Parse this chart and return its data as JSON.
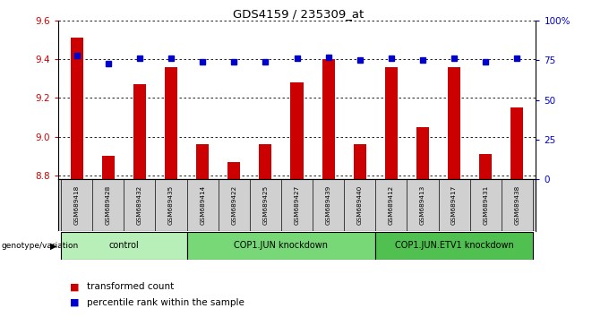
{
  "title": "GDS4159 / 235309_at",
  "samples": [
    "GSM689418",
    "GSM689428",
    "GSM689432",
    "GSM689435",
    "GSM689414",
    "GSM689422",
    "GSM689425",
    "GSM689427",
    "GSM689439",
    "GSM689440",
    "GSM689412",
    "GSM689413",
    "GSM689417",
    "GSM689431",
    "GSM689438"
  ],
  "transformed_count": [
    9.51,
    8.9,
    9.27,
    9.36,
    8.96,
    8.87,
    8.96,
    9.28,
    9.4,
    8.96,
    9.36,
    9.05,
    9.36,
    8.91,
    9.15
  ],
  "percentile_rank": [
    78,
    73,
    76,
    76,
    74,
    74,
    74,
    76,
    77,
    75,
    76,
    75,
    76,
    74,
    76
  ],
  "ylim_left": [
    8.78,
    9.6
  ],
  "ylim_right": [
    0,
    100
  ],
  "yticks_left": [
    8.8,
    9.0,
    9.2,
    9.4,
    9.6
  ],
  "yticks_right": [
    0,
    25,
    50,
    75,
    100
  ],
  "ytick_labels_right": [
    "0",
    "25",
    "50",
    "75",
    "100%"
  ],
  "groups": [
    {
      "label": "control",
      "start": 0,
      "end": 4,
      "color": "#b8eeb8"
    },
    {
      "label": "COP1.JUN knockdown",
      "start": 4,
      "end": 10,
      "color": "#78d878"
    },
    {
      "label": "COP1.JUN.ETV1 knockdown",
      "start": 10,
      "end": 15,
      "color": "#50c050"
    }
  ],
  "bar_color": "#cc0000",
  "dot_color": "#0000cc",
  "bar_width": 0.4,
  "bg_color": "#ffffff",
  "sample_box_color": "#d0d0d0",
  "xlabel_color": "#cc0000",
  "ylabel_right_color": "#0000cc",
  "legend_items": [
    {
      "label": "transformed count",
      "color": "#cc0000"
    },
    {
      "label": "percentile rank within the sample",
      "color": "#0000cc"
    }
  ],
  "genotype_label": "genotype/variation"
}
